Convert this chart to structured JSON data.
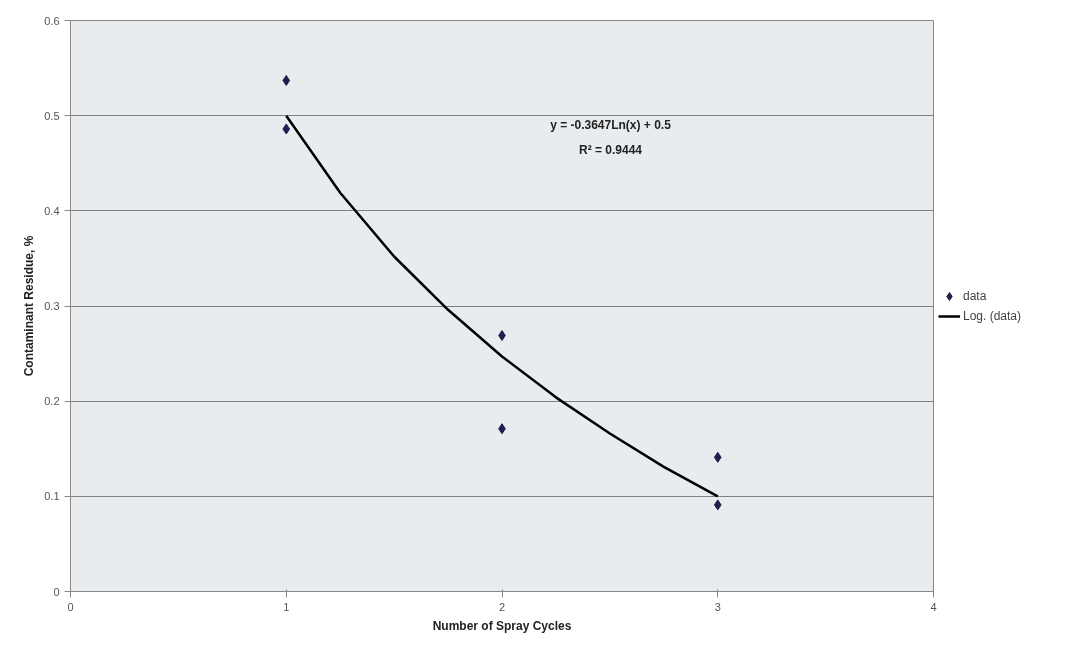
{
  "chart_data": {
    "type": "scatter",
    "xlabel": "Number of Spray Cycles",
    "ylabel": "Contaminant Residue, %",
    "xlim": [
      0,
      4
    ],
    "xticks": [
      0,
      1,
      2,
      3,
      4
    ],
    "ylim": [
      0,
      0.6
    ],
    "yticks": [
      0,
      0.1,
      0.2,
      0.3,
      0.4,
      0.5,
      0.6
    ],
    "grid": "y",
    "legend": "right",
    "annotations": [
      "y = -0.3647Ln(x) + 0.5",
      "R² = 0.9444"
    ],
    "series": [
      {
        "name": "data",
        "marker": "diamond",
        "color": "#1f2050",
        "x": [
          1,
          1,
          2,
          2,
          3,
          3
        ],
        "values": [
          0.537,
          0.486,
          0.269,
          0.171,
          0.141,
          0.091
        ]
      },
      {
        "name": "Log. (data)",
        "type": "line",
        "marker": "none",
        "color": "#000000",
        "line_style": "solid",
        "x": [
          1,
          1.25,
          1.5,
          1.75,
          2,
          2.25,
          2.5,
          2.75,
          3
        ],
        "values": [
          0.5,
          0.419,
          0.352,
          0.296,
          0.247,
          0.204,
          0.166,
          0.131,
          0.1
        ]
      }
    ]
  }
}
